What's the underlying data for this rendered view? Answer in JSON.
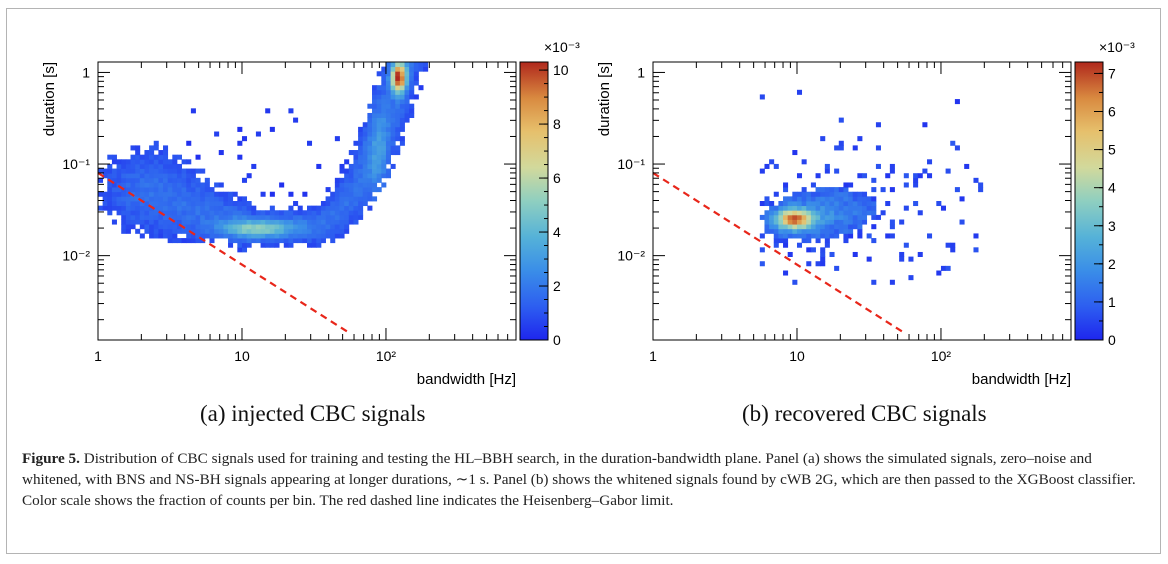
{
  "chart_data": [
    {
      "type": "heatmap",
      "xlabel": "bandwidth [Hz]",
      "ylabel": "duration [s]",
      "xscale": "log",
      "yscale": "log",
      "xlim": [
        1,
        800
      ],
      "ylim": [
        0.0012,
        1.3
      ],
      "x_ticks": [
        "1",
        "10",
        "10²"
      ],
      "y_ticks": [
        "10⁻²",
        "10⁻¹",
        "1"
      ],
      "colorbar": {
        "min": 0,
        "max": 0.0103,
        "multiplier": "×10⁻³",
        "ticks": [
          "0",
          "2",
          "4",
          "6",
          "8",
          "10"
        ]
      },
      "limit_line": {
        "style": "red dashed",
        "points": [
          [
            1,
            0.08
          ],
          [
            55,
            0.00145
          ]
        ]
      },
      "peak": {
        "bandwidth": 120,
        "duration": 0.9,
        "value": 0.0102
      },
      "caption": "(a) injected CBC signals"
    },
    {
      "type": "heatmap",
      "xlabel": "bandwidth [Hz]",
      "ylabel": "duration [s]",
      "xscale": "log",
      "yscale": "log",
      "xlim": [
        1,
        800
      ],
      "ylim": [
        0.0012,
        1.3
      ],
      "x_ticks": [
        "1",
        "10",
        "10²"
      ],
      "y_ticks": [
        "10⁻²",
        "10⁻¹",
        "1"
      ],
      "colorbar": {
        "min": 0,
        "max": 0.0073,
        "multiplier": "×10⁻³",
        "ticks": [
          "0",
          "1",
          "2",
          "3",
          "4",
          "5",
          "6",
          "7"
        ]
      },
      "limit_line": {
        "style": "red dashed",
        "points": [
          [
            1,
            0.08
          ],
          [
            55,
            0.00145
          ]
        ]
      },
      "peak": {
        "bandwidth": 9,
        "duration": 0.024,
        "value": 0.0072
      },
      "caption": "(b) recovered CBC signals"
    }
  ],
  "caption": {
    "label": "Figure 5.",
    "text": "Distribution of CBC signals used for training and testing the HL–BBH search, in the duration-bandwidth plane. Panel (a) shows the simulated signals, zero–noise and whitened, with BNS and NS-BH signals appearing at longer durations, ∼1 s. Panel (b) shows the whitened signals found by cWB 2G, which are then passed to the XGBoost classifier. Color scale shows the fraction of counts per bin. The red dashed line indicates the Heisenberg–Gabor limit."
  },
  "colors": {
    "limit_line": "#e8261a",
    "axis": "#000000",
    "frame": "#b4b4b4"
  }
}
